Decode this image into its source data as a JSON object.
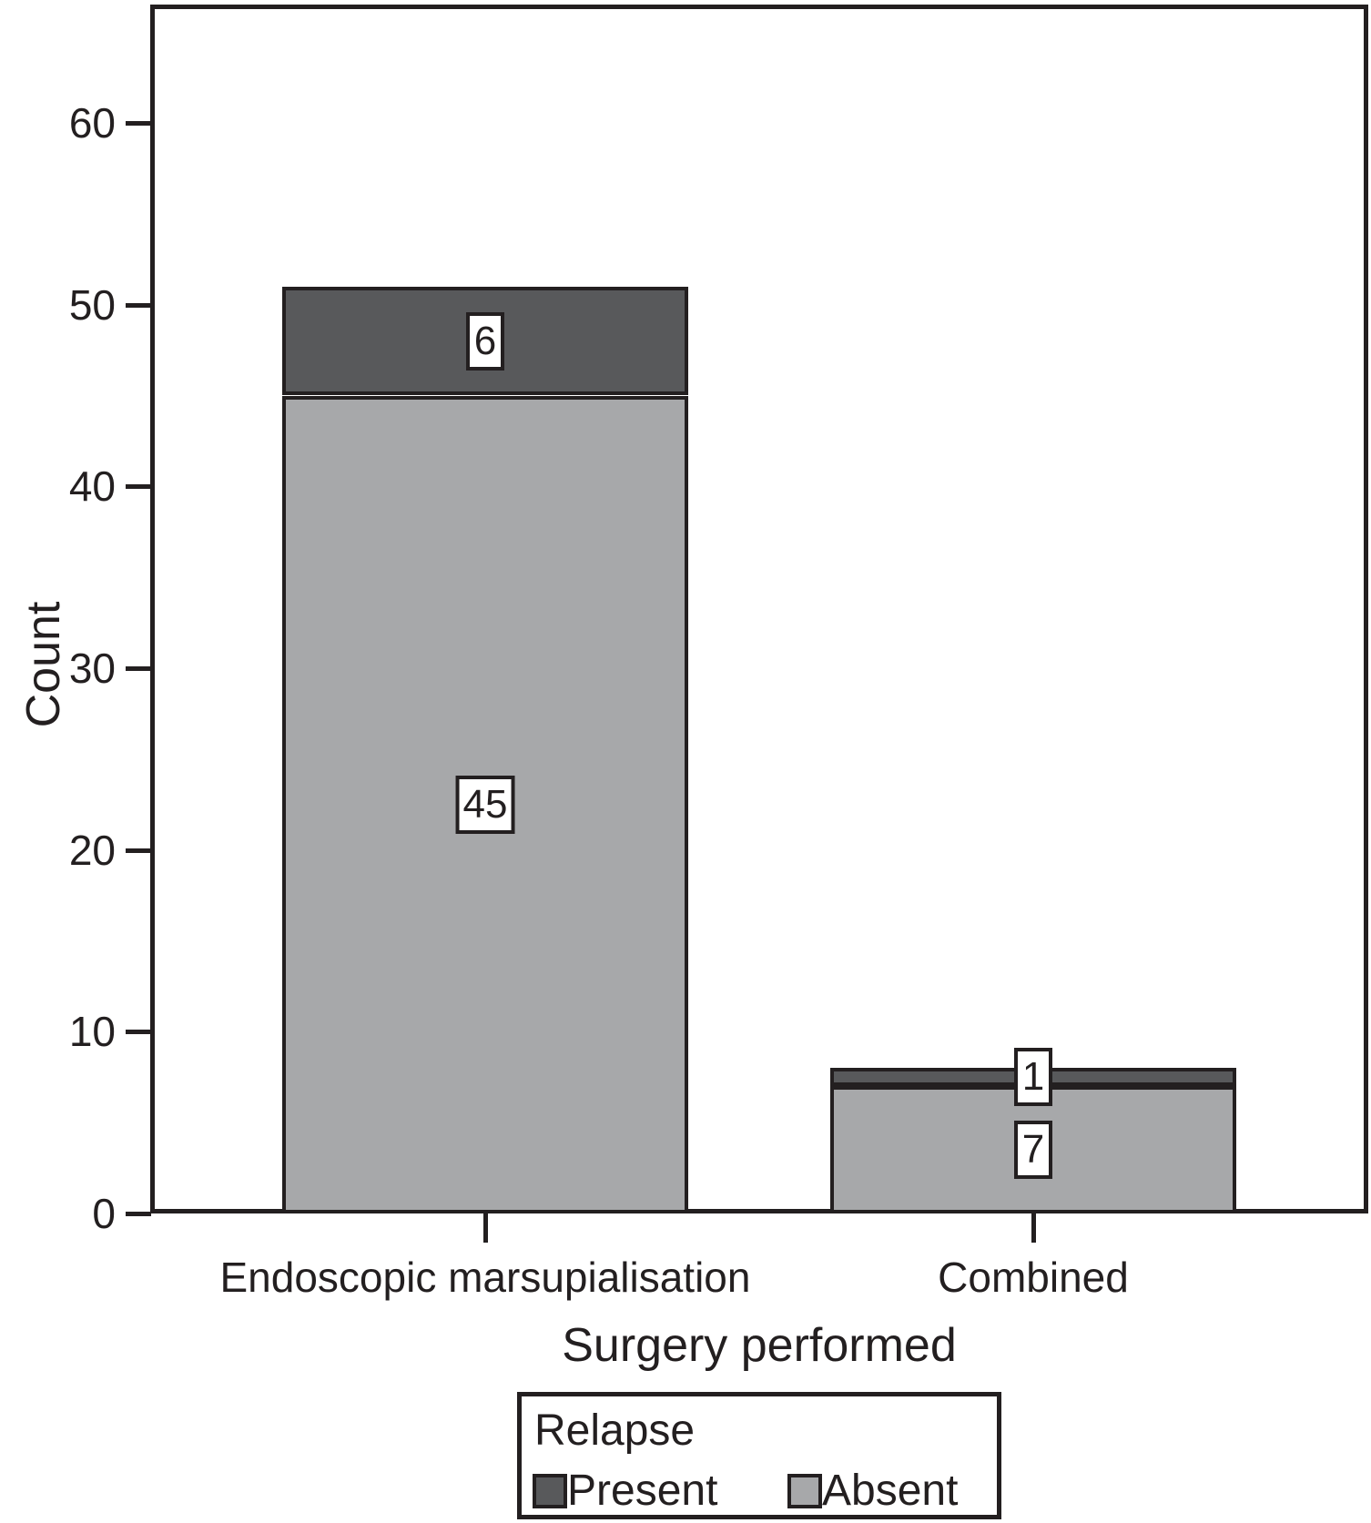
{
  "chart_data": {
    "type": "bar",
    "stacked": true,
    "categories": [
      "Endoscopic marsupialisation",
      "Combined"
    ],
    "series": [
      {
        "name": "Absent",
        "values": [
          45,
          7
        ],
        "color": "#a7a8aa"
      },
      {
        "name": "Present",
        "values": [
          6,
          1
        ],
        "color": "#58595b"
      }
    ],
    "bar_totals": [
      51,
      8
    ],
    "xlabel": "Surgery performed",
    "ylabel": "Count",
    "ylim": [
      0,
      66
    ],
    "y_ticks": [
      0,
      10,
      20,
      30,
      40,
      50,
      60
    ],
    "grid": false,
    "legend": {
      "title": "Relapse",
      "position": "bottom",
      "entries": [
        {
          "label": "Present",
          "color": "#58595b"
        },
        {
          "label": "Absent",
          "color": "#a7a8aa"
        }
      ]
    }
  },
  "colors": {
    "ink": "#231f20",
    "present": "#58595b",
    "absent": "#a7a8aa",
    "background": "#ffffff"
  }
}
